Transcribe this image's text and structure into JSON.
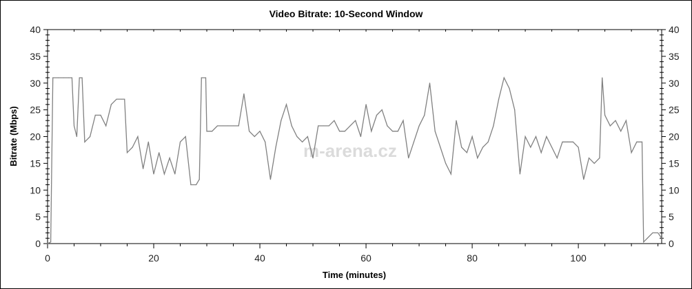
{
  "chart_data": {
    "type": "line",
    "title": "Video Bitrate: 10-Second Window",
    "xlabel": "Time (minutes)",
    "ylabel": "Bitrate (Mbps)",
    "xlim": [
      0,
      115.7
    ],
    "ylim": [
      0,
      40
    ],
    "xticks": [
      0,
      20,
      40,
      60,
      80,
      100
    ],
    "yticks": [
      0,
      5,
      10,
      15,
      20,
      25,
      30,
      35,
      40
    ],
    "right_axis": true,
    "grid": false,
    "line_color": "#808080",
    "watermark": "m-arena.cz",
    "x": [
      0,
      0.6,
      1,
      2,
      3,
      4,
      4.6,
      5,
      5.5,
      6,
      6.5,
      7,
      8,
      9,
      10,
      11,
      12,
      13,
      14,
      14.5,
      15,
      16,
      17,
      18,
      19,
      20,
      21,
      22,
      23,
      24,
      25,
      26,
      27,
      28,
      28.6,
      29,
      29.8,
      30,
      31,
      32,
      33,
      34,
      35,
      36,
      37,
      38,
      39,
      40,
      41,
      42,
      43,
      44,
      45,
      46,
      47,
      48,
      49,
      50,
      51,
      52,
      53,
      54,
      55,
      56,
      57,
      58,
      59,
      60,
      61,
      62,
      63,
      64,
      65,
      66,
      67,
      68,
      69,
      70,
      71,
      72,
      73,
      74,
      75,
      76,
      77,
      78,
      79,
      80,
      81,
      82,
      83,
      84,
      85,
      86,
      87,
      88,
      89,
      90,
      91,
      92,
      93,
      94,
      95,
      96,
      97,
      98,
      99,
      100,
      101,
      102,
      103,
      104,
      104.5,
      105,
      106,
      107,
      108,
      109,
      110,
      111,
      112,
      112.3,
      113,
      114,
      115,
      115.7
    ],
    "values": [
      0,
      0.3,
      31,
      31,
      31,
      31,
      31,
      22,
      20,
      31,
      31,
      19,
      20,
      24,
      24,
      22,
      26,
      27,
      27,
      27,
      17,
      18,
      20,
      14,
      19,
      13,
      17,
      13,
      16,
      13,
      19,
      20,
      11,
      11,
      12,
      31,
      31,
      21,
      21,
      22,
      22,
      22,
      22,
      22,
      28,
      21,
      20,
      21,
      19,
      12,
      18,
      23,
      26,
      22,
      20,
      19,
      20,
      16,
      22,
      22,
      22,
      23,
      21,
      21,
      22,
      23,
      20,
      26,
      21,
      24,
      25,
      22,
      21,
      21,
      23,
      16,
      19,
      22,
      24,
      30,
      21,
      18,
      15,
      13,
      23,
      18,
      17,
      20,
      16,
      18,
      19,
      22,
      27,
      31,
      29,
      25,
      13,
      20,
      18,
      20,
      17,
      20,
      18,
      16,
      19,
      19,
      19,
      18,
      12,
      16,
      15,
      16,
      31,
      24,
      22,
      23,
      21,
      23,
      17,
      19,
      19,
      0.3,
      1,
      2,
      2,
      1
    ]
  }
}
